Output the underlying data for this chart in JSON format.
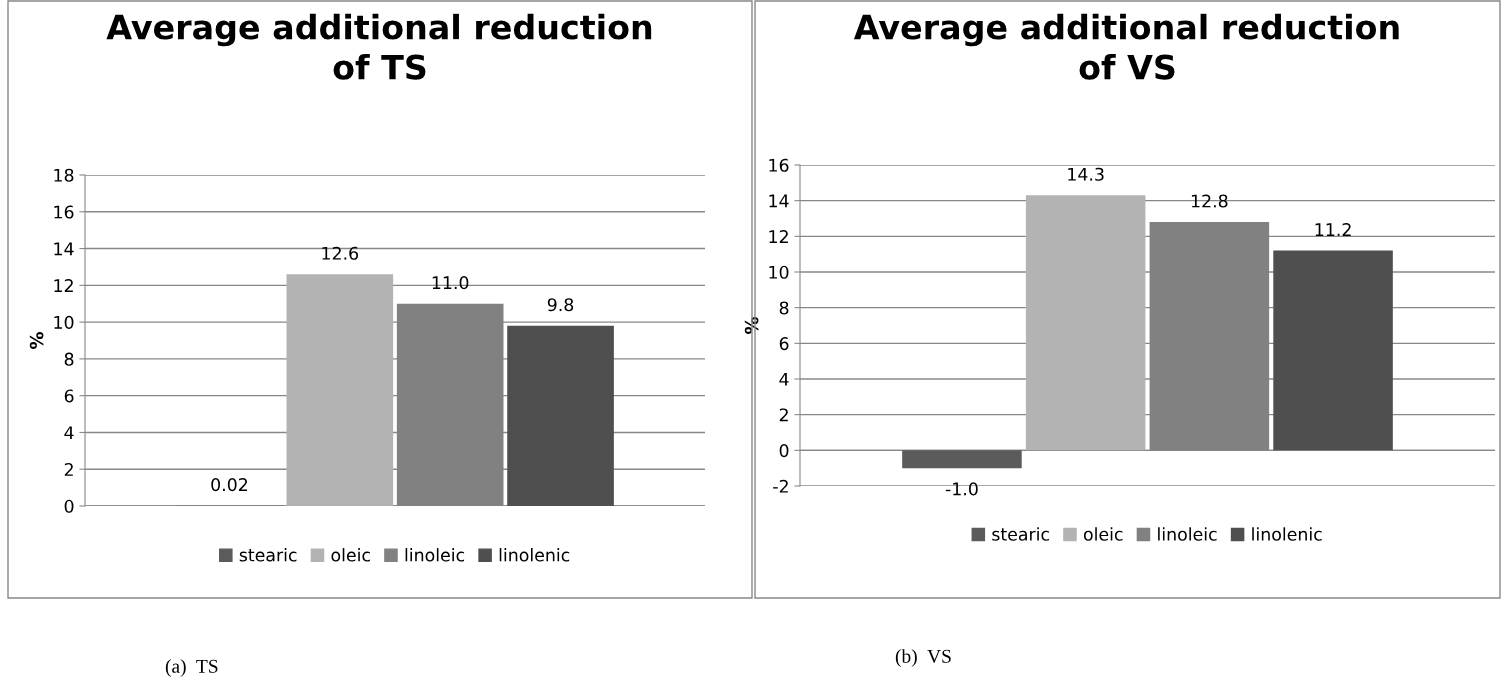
{
  "chart_data": [
    {
      "type": "bar",
      "title": "Average additional reduction of TS",
      "ylabel": "%",
      "categories": [
        null
      ],
      "series": [
        {
          "name": "stearic",
          "color": "#5b5b5b",
          "values": [
            0.02
          ],
          "value_labels": [
            "0.02"
          ]
        },
        {
          "name": "oleic",
          "color": "#b3b3b3",
          "values": [
            12.6
          ],
          "value_labels": [
            "12.6"
          ]
        },
        {
          "name": "linoleic",
          "color": "#818181",
          "values": [
            11.0
          ],
          "value_labels": [
            "11.0"
          ]
        },
        {
          "name": "linolenic",
          "color": "#4f4f4f",
          "values": [
            9.8
          ],
          "value_labels": [
            "9.8"
          ]
        }
      ],
      "ylim": [
        0,
        18
      ],
      "yticks": [
        0,
        2,
        4,
        6,
        8,
        10,
        12,
        14,
        16,
        18
      ],
      "grid": "y",
      "legend": "bottom",
      "tick_labels": "y",
      "annotations": [
        "(a)  TS"
      ]
    },
    {
      "type": "bar",
      "title": "Average additional reduction of VS",
      "ylabel": "%",
      "categories": [
        null
      ],
      "series": [
        {
          "name": "stearic",
          "color": "#5b5b5b",
          "values": [
            -1.0
          ],
          "value_labels": [
            "-1.0"
          ]
        },
        {
          "name": "oleic",
          "color": "#b3b3b3",
          "values": [
            14.3
          ],
          "value_labels": [
            "14.3"
          ]
        },
        {
          "name": "linoleic",
          "color": "#818181",
          "values": [
            12.8
          ],
          "value_labels": [
            "12.8"
          ]
        },
        {
          "name": "linolenic",
          "color": "#4f4f4f",
          "values": [
            11.2
          ],
          "value_labels": [
            "11.2"
          ]
        }
      ],
      "ylim": [
        -2,
        16
      ],
      "yticks": [
        -2,
        0,
        2,
        4,
        6,
        8,
        10,
        12,
        14,
        16
      ],
      "grid": "y",
      "legend": "bottom",
      "tick_labels": "y",
      "annotations": [
        "(b)  VS"
      ]
    }
  ]
}
